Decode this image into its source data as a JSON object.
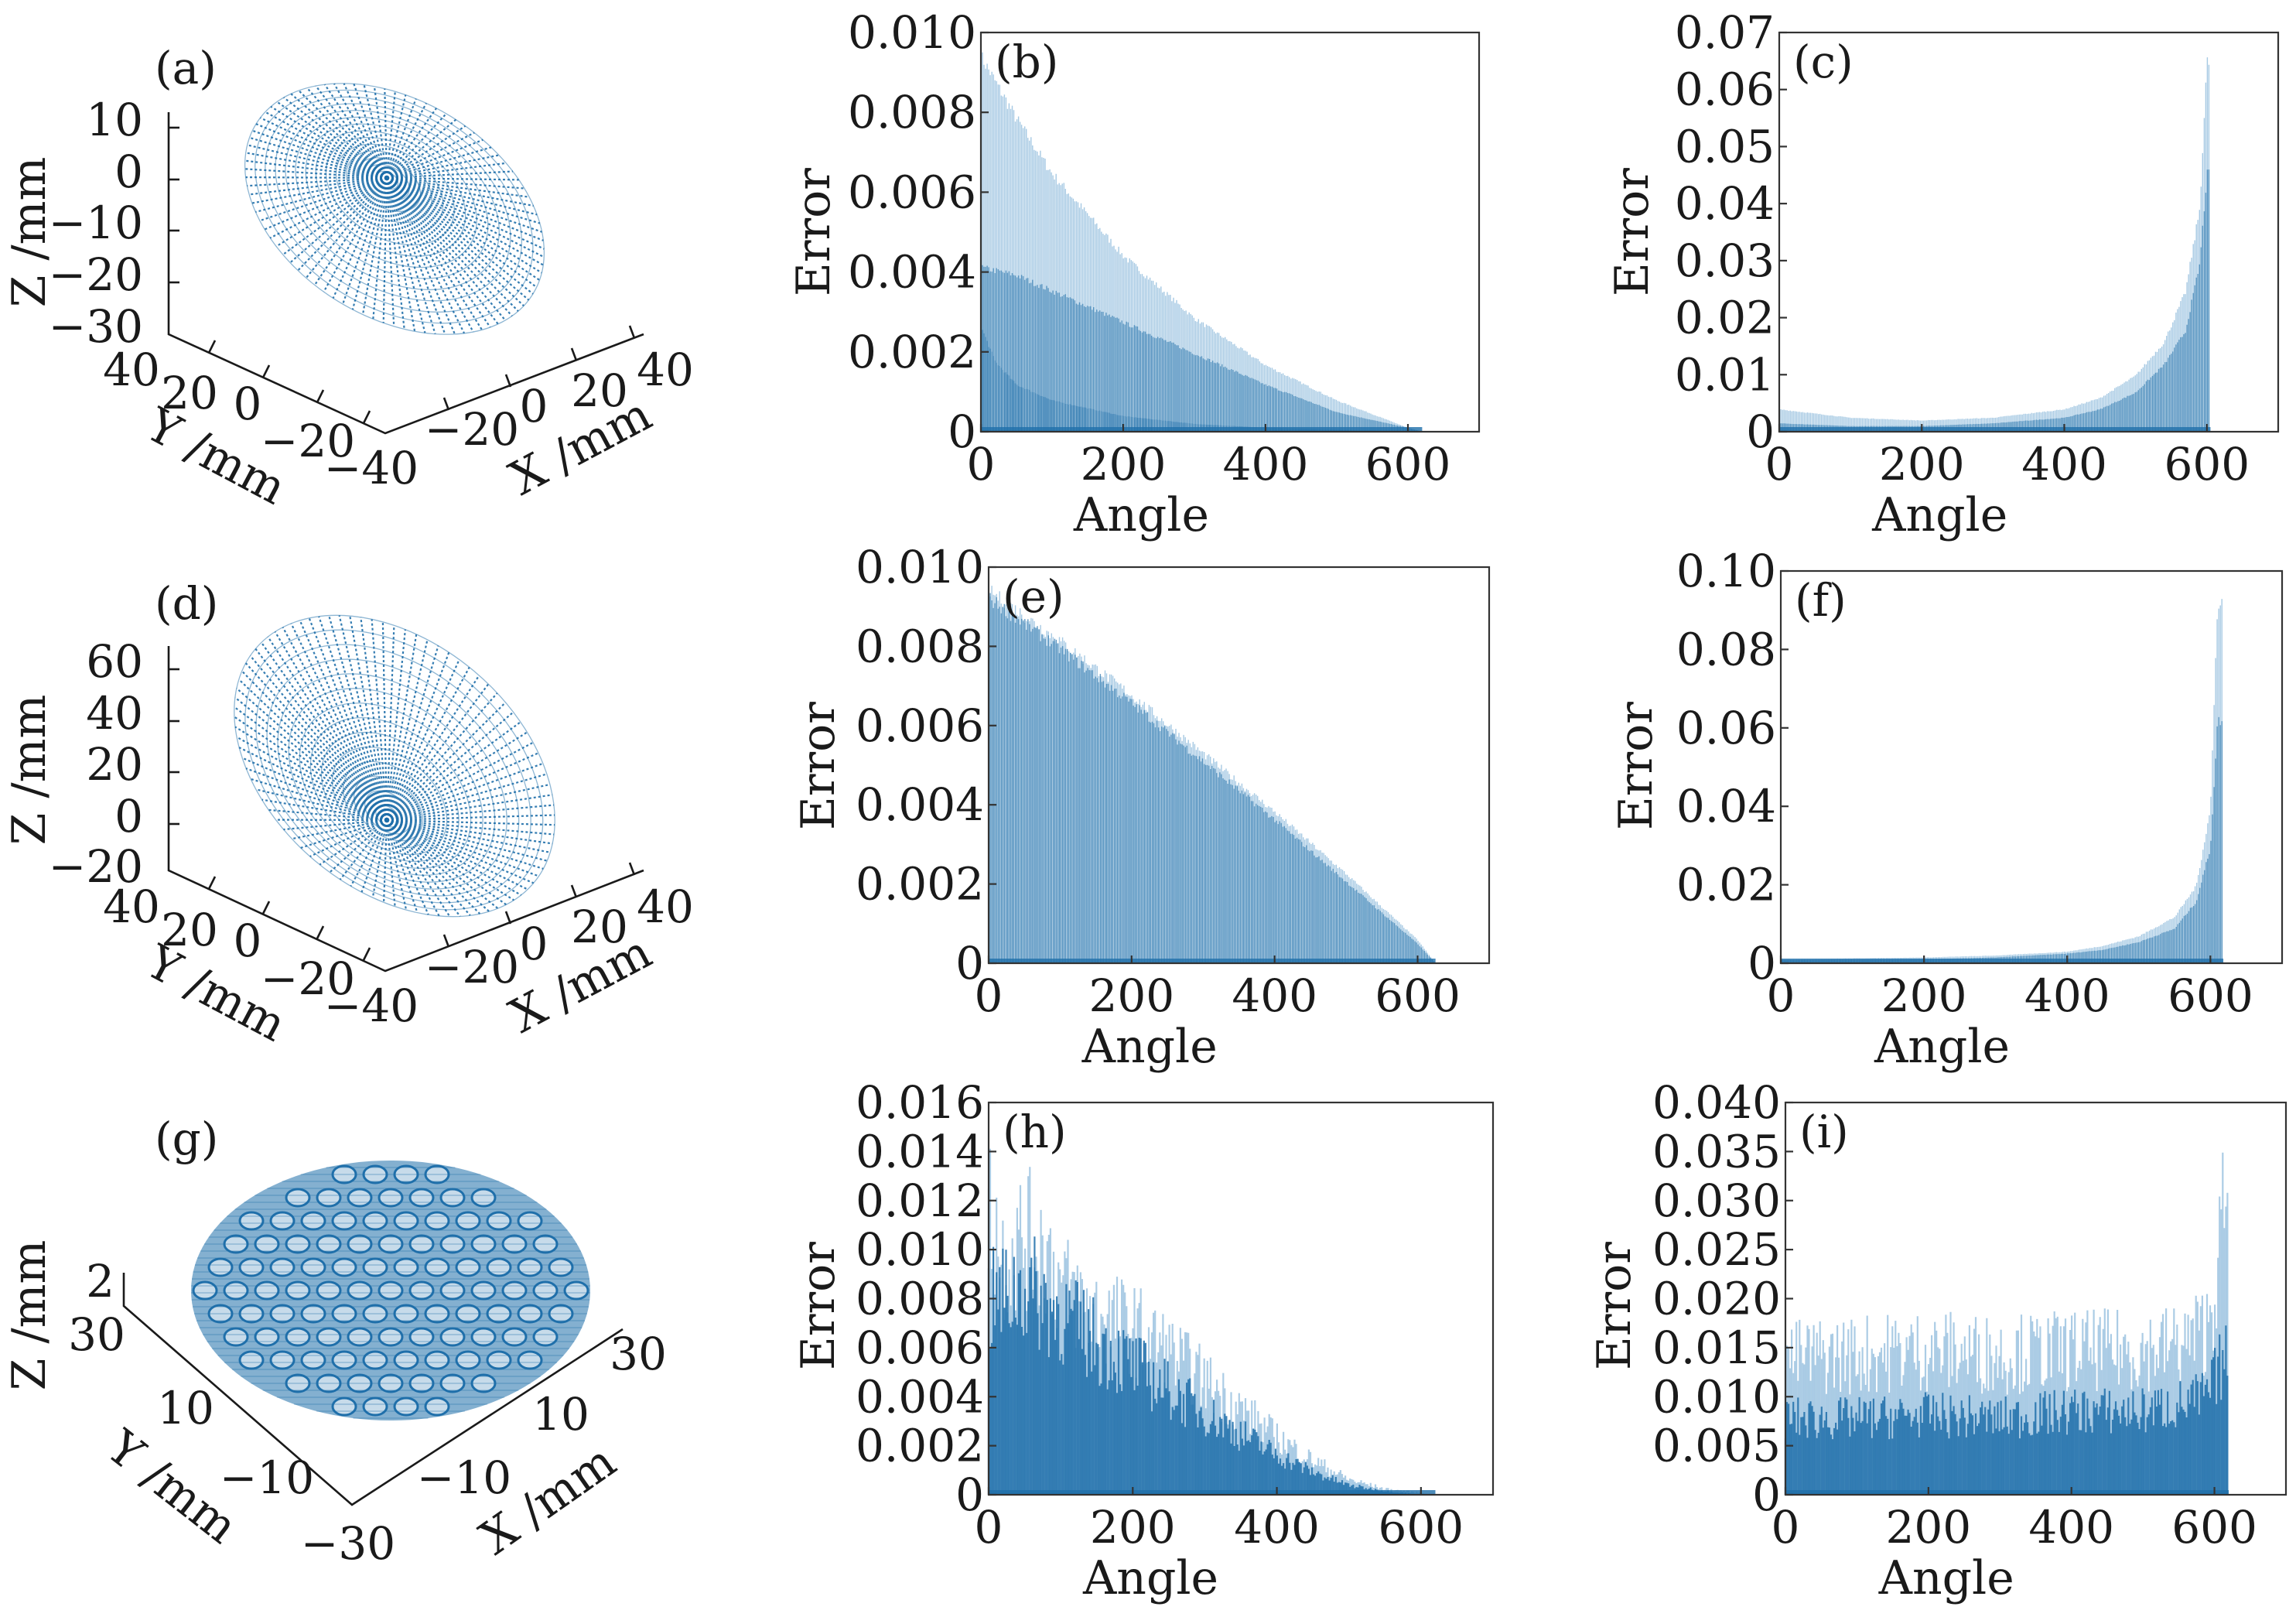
{
  "colors": {
    "series": "#1f6faa",
    "series_light": "#9cc3e0",
    "axis": "#333333",
    "text": "#1a1a1a"
  },
  "chart_data": [
    {
      "panel": "(a)",
      "type": "scatter",
      "title": "",
      "xlabel": "X /mm",
      "ylabel": "Y /mm",
      "zlabel": "Z /mm",
      "xticks": [
        "−20",
        "0",
        "20",
        "40"
      ],
      "yticks": [
        "40",
        "20",
        "0",
        "−20",
        "−40"
      ],
      "zticks": [
        "10",
        "0",
        "−10",
        "−20",
        "−30"
      ],
      "surface": "radial point mesh of a convex lens surface"
    },
    {
      "panel": "(b)",
      "type": "bar",
      "xlabel": "Angle",
      "ylabel": "Error",
      "xlim": [
        0,
        700
      ],
      "ylim": [
        0,
        0.01
      ],
      "xticks": [
        "0",
        "200",
        "400",
        "600"
      ],
      "yticks": [
        "0",
        "0.002",
        "0.004",
        "0.006",
        "0.008",
        "0.010"
      ],
      "grid": false,
      "envelopes": [
        {
          "x": [
            0,
            50,
            100,
            200,
            300,
            400,
            500,
            600,
            620
          ],
          "y": [
            0.0096,
            0.008,
            0.0066,
            0.0045,
            0.0029,
            0.0017,
            0.0008,
            0.0001,
            0.0
          ]
        },
        {
          "x": [
            0,
            50,
            100,
            200,
            300,
            400,
            500,
            600,
            620
          ],
          "y": [
            0.0042,
            0.004,
            0.0036,
            0.0028,
            0.002,
            0.0012,
            0.0005,
            0.0001,
            0.0
          ]
        },
        {
          "x": [
            0,
            20,
            50,
            100,
            200,
            300,
            400,
            500,
            600,
            620
          ],
          "y": [
            0.0027,
            0.0018,
            0.0012,
            0.0008,
            0.0004,
            0.0002,
            0.0001,
            5e-05,
            0.0,
            0.0
          ]
        }
      ]
    },
    {
      "panel": "(c)",
      "type": "bar",
      "xlabel": "Angle",
      "ylabel": "Error",
      "xlim": [
        0,
        700
      ],
      "ylim": [
        0,
        0.07
      ],
      "xticks": [
        "0",
        "200",
        "400",
        "600"
      ],
      "yticks": [
        "0",
        "0.01",
        "0.02",
        "0.03",
        "0.04",
        "0.05",
        "0.06",
        "0.07"
      ],
      "grid": false,
      "envelopes": [
        {
          "x": [
            0,
            100,
            200,
            300,
            400,
            450,
            500,
            540,
            570,
            590,
            600,
            605
          ],
          "y": [
            0.004,
            0.0025,
            0.002,
            0.0025,
            0.004,
            0.006,
            0.01,
            0.016,
            0.025,
            0.04,
            0.066,
            0.066
          ]
        },
        {
          "x": [
            0,
            100,
            200,
            300,
            400,
            450,
            500,
            540,
            570,
            590,
            600,
            605
          ],
          "y": [
            0.0015,
            0.001,
            0.001,
            0.0015,
            0.0025,
            0.004,
            0.007,
            0.012,
            0.018,
            0.03,
            0.046,
            0.046
          ]
        }
      ]
    },
    {
      "panel": "(d)",
      "type": "scatter",
      "title": "",
      "xlabel": "X /mm",
      "ylabel": "Y /mm",
      "zlabel": "Z /mm",
      "xticks": [
        "−20",
        "0",
        "20",
        "40"
      ],
      "yticks": [
        "40",
        "20",
        "0",
        "−20",
        "−40"
      ],
      "zticks": [
        "60",
        "40",
        "20",
        "0",
        "−20"
      ],
      "surface": "radial point mesh of a tilted conical surface"
    },
    {
      "panel": "(e)",
      "type": "bar",
      "xlabel": "Angle",
      "ylabel": "Error",
      "xlim": [
        0,
        700
      ],
      "ylim": [
        0,
        0.01
      ],
      "xticks": [
        "0",
        "200",
        "400",
        "600"
      ],
      "yticks": [
        "0",
        "0.002",
        "0.004",
        "0.006",
        "0.008",
        "0.010"
      ],
      "grid": false,
      "envelopes": [
        {
          "x": [
            0,
            100,
            200,
            300,
            400,
            500,
            600,
            625
          ],
          "y": [
            0.0096,
            0.0083,
            0.0069,
            0.0054,
            0.0039,
            0.0023,
            0.0006,
            0.0
          ]
        },
        {
          "x": [
            0,
            100,
            200,
            300,
            400,
            500,
            600,
            625
          ],
          "y": [
            0.0094,
            0.0081,
            0.0067,
            0.0052,
            0.0037,
            0.0021,
            0.0005,
            0.0
          ]
        }
      ]
    },
    {
      "panel": "(f)",
      "type": "bar",
      "xlabel": "Angle",
      "ylabel": "Error",
      "xlim": [
        0,
        700
      ],
      "ylim": [
        0,
        0.1
      ],
      "xticks": [
        "0",
        "200",
        "400",
        "600"
      ],
      "yticks": [
        "0",
        "0.02",
        "0.04",
        "0.06",
        "0.08",
        "0.10"
      ],
      "grid": false,
      "envelopes": [
        {
          "x": [
            0,
            200,
            300,
            400,
            450,
            500,
            550,
            580,
            600,
            610,
            618
          ],
          "y": [
            0.001,
            0.0015,
            0.002,
            0.003,
            0.0045,
            0.007,
            0.012,
            0.02,
            0.04,
            0.094,
            0.094
          ]
        },
        {
          "x": [
            0,
            200,
            300,
            400,
            450,
            500,
            550,
            580,
            600,
            610,
            618
          ],
          "y": [
            0.0008,
            0.001,
            0.0015,
            0.0025,
            0.0035,
            0.0055,
            0.009,
            0.016,
            0.03,
            0.063,
            0.063
          ]
        }
      ]
    },
    {
      "panel": "(g)",
      "type": "scatter",
      "title": "",
      "xlabel": "X /mm",
      "ylabel": "Y /mm",
      "zlabel": "Z /mm",
      "xticks": [
        "−10",
        "10",
        "30"
      ],
      "yticks": [
        "30",
        "10",
        "−10",
        "−30"
      ],
      "zticks": [
        "2"
      ],
      "surface": "dense point mesh of a dimpled (micro-lens array) surface"
    },
    {
      "panel": "(h)",
      "type": "bar",
      "xlabel": "Angle",
      "ylabel": "Error",
      "xlim": [
        0,
        700
      ],
      "ylim": [
        0,
        0.016
      ],
      "xticks": [
        "0",
        "200",
        "400",
        "600"
      ],
      "yticks": [
        "0",
        "0.002",
        "0.004",
        "0.006",
        "0.008",
        "0.010",
        "0.012",
        "0.014",
        "0.016"
      ],
      "grid": false,
      "envelopes": [
        {
          "x": [
            0,
            20,
            50,
            80,
            100,
            150,
            200,
            250,
            300,
            350,
            400,
            450,
            500,
            550,
            600,
            620
          ],
          "y": [
            0.0155,
            0.0125,
            0.0135,
            0.013,
            0.011,
            0.0095,
            0.0088,
            0.0075,
            0.006,
            0.0045,
            0.003,
            0.0018,
            0.0008,
            0.0003,
            0.0001,
            0.0
          ]
        },
        {
          "x": [
            0,
            50,
            100,
            150,
            200,
            250,
            300,
            350,
            400,
            450,
            500,
            550,
            600,
            620
          ],
          "y": [
            0.01,
            0.011,
            0.0095,
            0.008,
            0.0068,
            0.0055,
            0.0043,
            0.0032,
            0.0021,
            0.0012,
            0.0005,
            0.0002,
            0.0,
            0.0
          ]
        }
      ]
    },
    {
      "panel": "(i)",
      "type": "bar",
      "xlabel": "Angle",
      "ylabel": "Error",
      "xlim": [
        0,
        700
      ],
      "ylim": [
        0,
        0.04
      ],
      "xticks": [
        "0",
        "200",
        "400",
        "600"
      ],
      "yticks": [
        "0",
        "0.005",
        "0.010",
        "0.015",
        "0.020",
        "0.025",
        "0.030",
        "0.035",
        "0.040"
      ],
      "grid": false,
      "envelopes": [
        {
          "x": [
            0,
            100,
            200,
            300,
            400,
            500,
            560,
            590,
            605,
            612,
            620
          ],
          "y": [
            0.018,
            0.0185,
            0.019,
            0.0185,
            0.019,
            0.019,
            0.02,
            0.022,
            0.03,
            0.036,
            0.036
          ]
        },
        {
          "x": [
            0,
            100,
            200,
            300,
            400,
            500,
            560,
            590,
            605,
            612,
            620
          ],
          "y": [
            0.01,
            0.01,
            0.0105,
            0.01,
            0.011,
            0.011,
            0.012,
            0.013,
            0.016,
            0.018,
            0.018
          ]
        }
      ]
    }
  ]
}
